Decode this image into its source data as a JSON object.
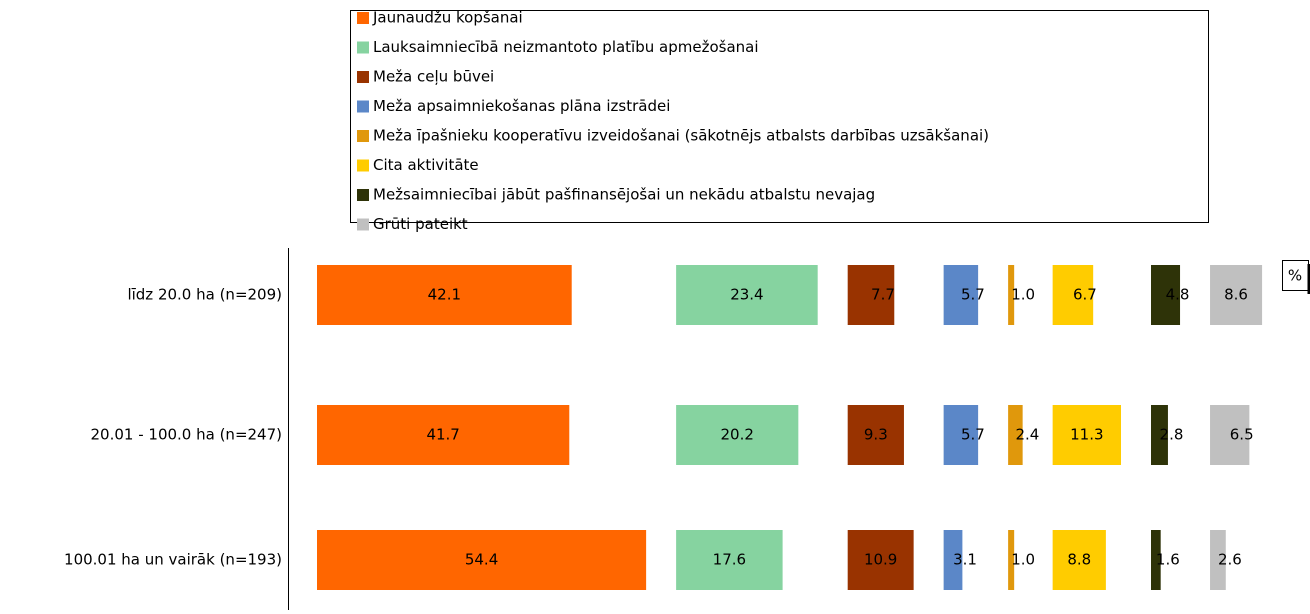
{
  "chart_data": {
    "type": "bar-panels",
    "axis_label": "%",
    "categories": [
      "līdz 20.0 ha (n=209)",
      "20.01 - 100.0 ha (n=247)",
      "100.01 ha un vairāk (n=193)"
    ],
    "series": [
      {
        "name": "Jaunaudžu kopšanai",
        "color": "#ff6600",
        "values": [
          42.1,
          41.7,
          54.4
        ],
        "value_labels": [
          "42.1",
          "41.7",
          "54.4"
        ]
      },
      {
        "name": "Lauksaimniecībā neizmantoto platību apmežošanai",
        "color": "#86d3a0",
        "values": [
          23.4,
          20.2,
          17.6
        ],
        "value_labels": [
          "23.4",
          "20.2",
          "17.6"
        ]
      },
      {
        "name": "Meža ceļu būvei",
        "color": "#993300",
        "values": [
          7.7,
          9.3,
          10.9
        ],
        "value_labels": [
          "7.7",
          "9.3",
          "10.9"
        ]
      },
      {
        "name": "Meža apsaimniekošanas plāna izstrādei",
        "color": "#5b87c8",
        "values": [
          5.7,
          5.7,
          3.1
        ],
        "value_labels": [
          "5.7",
          "5.7",
          "3.1"
        ]
      },
      {
        "name": "Meža īpašnieku kooperatīvu izveidošanai (sākotnējs atbalsts darbības uzsākšanai)",
        "color": "#e0980c",
        "values": [
          1.0,
          2.4,
          1.0
        ],
        "value_labels": [
          "1.0",
          "2.4",
          "1.0"
        ]
      },
      {
        "name": "Cita aktivitāte",
        "color": "#ffcc00",
        "values": [
          6.7,
          11.3,
          8.8
        ],
        "value_labels": [
          "6.7",
          "11.3",
          "8.8"
        ]
      },
      {
        "name": "Mežsaimniecībai jābūt pašfinansējošai un nekādu atbalstu nevajag",
        "color": "#2e3308",
        "values": [
          4.8,
          2.8,
          1.6
        ],
        "value_labels": [
          "4.8",
          "2.8",
          "1.6"
        ]
      },
      {
        "name": "Grūti pateikt",
        "color": "#c0c0c0",
        "values": [
          8.6,
          6.5,
          2.6
        ],
        "value_labels": [
          "8.6",
          "6.5",
          "2.6"
        ]
      }
    ]
  }
}
